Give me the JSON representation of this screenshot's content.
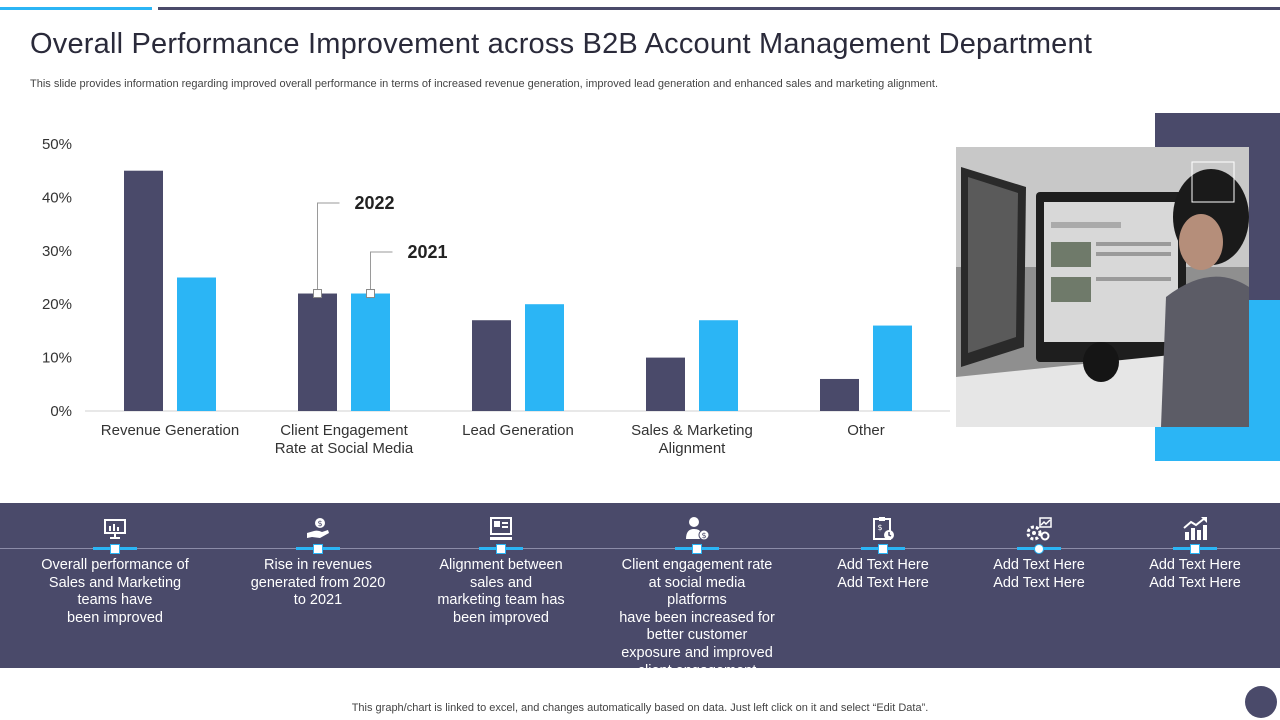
{
  "title": "Overall Performance Improvement across B2B Account Management Department",
  "subtitle": "This slide provides information regarding improved overall performance in terms of increased revenue generation, improved lead generation and enhanced sales and marketing alignment.",
  "chart_data": {
    "type": "bar",
    "categories": [
      [
        "Revenue Generation"
      ],
      [
        "Client Engagement",
        "Rate at Social Media"
      ],
      [
        "Lead Generation"
      ],
      [
        "Sales & Marketing",
        "Alignment"
      ],
      [
        "Other"
      ]
    ],
    "series": [
      {
        "name": "2022",
        "color": "#4a4a6a",
        "values": [
          45,
          22,
          17,
          10,
          6
        ]
      },
      {
        "name": "2021",
        "color": "#2bb5f5",
        "values": [
          25,
          22,
          20,
          17,
          16
        ]
      }
    ],
    "ylim": [
      0,
      50
    ],
    "yticks": [
      "0%",
      "10%",
      "20%",
      "30%",
      "40%",
      "50%"
    ],
    "ytick_values": [
      0,
      10,
      20,
      30,
      40,
      50
    ],
    "legend": "callouts on the Client Engagement bars",
    "grid": false
  },
  "features": [
    {
      "icon": "presentation-chart-icon",
      "text": [
        "Overall performance of",
        "Sales and Marketing",
        "teams have",
        "been improved"
      ]
    },
    {
      "icon": "hand-dollar-icon",
      "text": [
        "Rise in revenues",
        "generated from 2020",
        "to 2021"
      ]
    },
    {
      "icon": "computer-monitor-icon",
      "text": [
        "Alignment between",
        "sales and",
        "marketing team has",
        "been improved"
      ]
    },
    {
      "icon": "user-dollar-icon",
      "text": [
        "Client engagement rate",
        "at social media platforms",
        "have been increased for",
        "better customer",
        "exposure and improved",
        "client engagement"
      ]
    },
    {
      "icon": "clipboard-dollar-icon",
      "text": [
        "Add Text Here",
        "Add Text Here"
      ]
    },
    {
      "icon": "gears-chart-icon",
      "text": [
        "Add Text Here",
        "Add Text Here"
      ]
    },
    {
      "icon": "growth-chart-icon",
      "text": [
        "Add Text Here",
        "Add Text Here"
      ]
    }
  ],
  "footnote": "This graph/chart is linked to excel,  and changes automatically based on data. Just left click on it and select “Edit Data”.",
  "colors": {
    "dark": "#4a4a6a",
    "accent": "#2bb5f5"
  }
}
